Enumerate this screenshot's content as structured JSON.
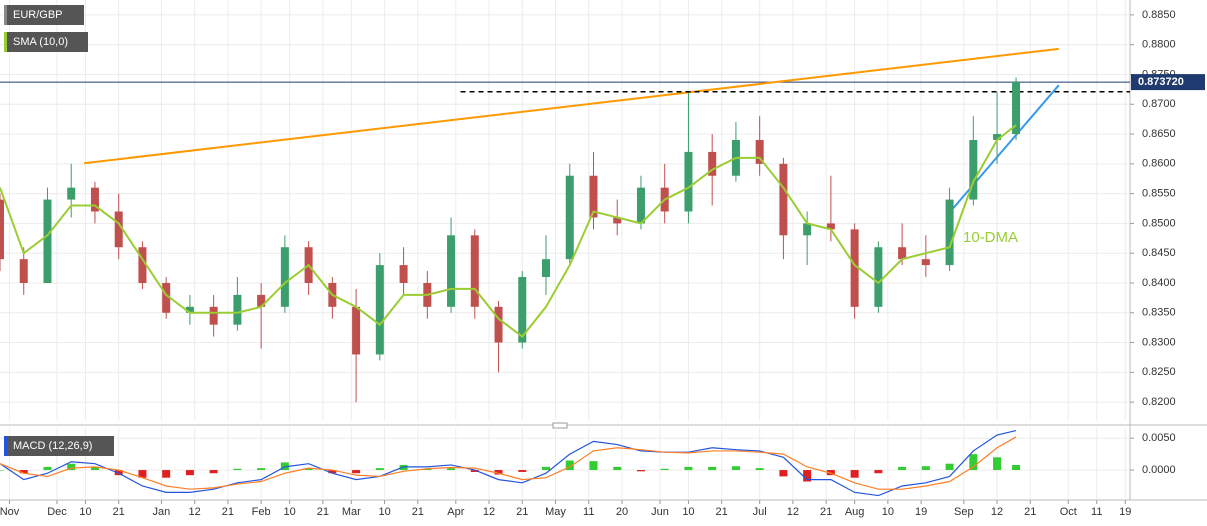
{
  "chart_data": {
    "type": "candlestick",
    "title": "EUR/GBP",
    "sma_label": "SMA (10,0)",
    "macd_label": "MACD (12,26,9)",
    "annotation": "10-DMA",
    "last_price": {
      "value": 0.87372,
      "label": "0.873720"
    },
    "colors": {
      "up": "#3b9e6c",
      "down": "#c0504d",
      "sma": "#9acd32",
      "trend": "#ff9900",
      "support": "#3399ee",
      "macd": "#2255dd",
      "signal": "#ff7f27",
      "hist_up": "#33cc33",
      "hist_down": "#e02020"
    },
    "grid": true,
    "xlim": [
      0,
      238
    ],
    "xticks": [
      {
        "value": 2,
        "label": "Nov"
      },
      {
        "value": 12,
        "label": "Dec"
      },
      {
        "value": 18,
        "label": "10"
      },
      {
        "value": 25,
        "label": "21"
      },
      {
        "value": 34,
        "label": "Jan"
      },
      {
        "value": 41,
        "label": "12"
      },
      {
        "value": 48,
        "label": "21"
      },
      {
        "value": 55,
        "label": "Feb"
      },
      {
        "value": 61,
        "label": "10"
      },
      {
        "value": 68,
        "label": "21"
      },
      {
        "value": 74,
        "label": "Mar"
      },
      {
        "value": 81,
        "label": "10"
      },
      {
        "value": 88,
        "label": "21"
      },
      {
        "value": 96,
        "label": "Apr"
      },
      {
        "value": 103,
        "label": "12"
      },
      {
        "value": 110,
        "label": "21"
      },
      {
        "value": 117,
        "label": "May"
      },
      {
        "value": 124,
        "label": "11"
      },
      {
        "value": 131,
        "label": "20"
      },
      {
        "value": 139,
        "label": "Jun"
      },
      {
        "value": 145,
        "label": "10"
      },
      {
        "value": 152,
        "label": "21"
      },
      {
        "value": 160,
        "label": "Jul"
      },
      {
        "value": 167,
        "label": "12"
      },
      {
        "value": 174,
        "label": "21"
      },
      {
        "value": 180,
        "label": "Aug"
      },
      {
        "value": 187,
        "label": "10"
      },
      {
        "value": 194,
        "label": "19"
      },
      {
        "value": 203,
        "label": "Sep"
      },
      {
        "value": 210,
        "label": "12"
      },
      {
        "value": 217,
        "label": "21"
      },
      {
        "value": 225,
        "label": "Oct"
      },
      {
        "value": 231,
        "label": "11"
      },
      {
        "value": 237,
        "label": "19"
      }
    ],
    "ylim": [
      0.817,
      0.8875
    ],
    "yticks": [
      {
        "value": 0.885,
        "label": "0.8850"
      },
      {
        "value": 0.88,
        "label": "0.8800"
      },
      {
        "value": 0.875,
        "label": "0.8750"
      },
      {
        "value": 0.87,
        "label": "0.8700"
      },
      {
        "value": 0.865,
        "label": "0.8650"
      },
      {
        "value": 0.86,
        "label": "0.8600"
      },
      {
        "value": 0.855,
        "label": "0.8550"
      },
      {
        "value": 0.85,
        "label": "0.8500"
      },
      {
        "value": 0.845,
        "label": "0.8450"
      },
      {
        "value": 0.84,
        "label": "0.8400"
      },
      {
        "value": 0.835,
        "label": "0.8350"
      },
      {
        "value": 0.83,
        "label": "0.8300"
      },
      {
        "value": 0.825,
        "label": "0.8250"
      },
      {
        "value": 0.82,
        "label": "0.8200"
      }
    ],
    "x": [
      0,
      5,
      10,
      15,
      20,
      25,
      30,
      35,
      40,
      45,
      50,
      55,
      60,
      65,
      70,
      75,
      80,
      85,
      90,
      95,
      100,
      105,
      110,
      115,
      120,
      125,
      130,
      135,
      140,
      145,
      150,
      155,
      160,
      165,
      170,
      175,
      180,
      185,
      190,
      195,
      200,
      205,
      210,
      214
    ],
    "open": [
      0.854,
      0.844,
      0.84,
      0.854,
      0.856,
      0.852,
      0.846,
      0.84,
      0.835,
      0.836,
      0.833,
      0.838,
      0.836,
      0.846,
      0.84,
      0.836,
      0.828,
      0.843,
      0.84,
      0.836,
      0.848,
      0.836,
      0.83,
      0.841,
      0.844,
      0.858,
      0.851,
      0.85,
      0.856,
      0.852,
      0.862,
      0.858,
      0.864,
      0.86,
      0.848,
      0.85,
      0.849,
      0.836,
      0.846,
      0.844,
      0.843,
      0.854,
      0.864,
      0.865
    ],
    "high": [
      0.855,
      0.846,
      0.856,
      0.86,
      0.857,
      0.855,
      0.847,
      0.841,
      0.838,
      0.838,
      0.841,
      0.84,
      0.848,
      0.847,
      0.841,
      0.839,
      0.845,
      0.846,
      0.842,
      0.851,
      0.849,
      0.837,
      0.842,
      0.848,
      0.86,
      0.862,
      0.854,
      0.858,
      0.86,
      0.872,
      0.865,
      0.867,
      0.868,
      0.861,
      0.852,
      0.858,
      0.85,
      0.847,
      0.85,
      0.848,
      0.856,
      0.868,
      0.872,
      0.8745
    ],
    "low": [
      0.842,
      0.838,
      0.84,
      0.851,
      0.85,
      0.844,
      0.839,
      0.834,
      0.833,
      0.831,
      0.832,
      0.829,
      0.835,
      0.838,
      0.834,
      0.82,
      0.827,
      0.838,
      0.834,
      0.835,
      0.834,
      0.825,
      0.829,
      0.838,
      0.843,
      0.849,
      0.848,
      0.849,
      0.85,
      0.85,
      0.853,
      0.857,
      0.858,
      0.844,
      0.843,
      0.847,
      0.834,
      0.835,
      0.843,
      0.841,
      0.842,
      0.853,
      0.86,
      0.864
    ],
    "close": [
      0.844,
      0.84,
      0.854,
      0.856,
      0.852,
      0.846,
      0.84,
      0.835,
      0.836,
      0.833,
      0.838,
      0.836,
      0.846,
      0.84,
      0.836,
      0.828,
      0.843,
      0.84,
      0.836,
      0.848,
      0.836,
      0.83,
      0.841,
      0.844,
      0.858,
      0.851,
      0.85,
      0.856,
      0.852,
      0.862,
      0.858,
      0.864,
      0.86,
      0.848,
      0.85,
      0.849,
      0.836,
      0.846,
      0.844,
      0.843,
      0.854,
      0.864,
      0.865,
      0.87372
    ],
    "sma": [
      0.856,
      0.845,
      0.848,
      0.853,
      0.853,
      0.85,
      0.844,
      0.838,
      0.835,
      0.835,
      0.835,
      0.836,
      0.84,
      0.843,
      0.838,
      0.836,
      0.833,
      0.838,
      0.838,
      0.839,
      0.839,
      0.834,
      0.831,
      0.836,
      0.843,
      0.852,
      0.851,
      0.85,
      0.854,
      0.856,
      0.859,
      0.861,
      0.861,
      0.856,
      0.85,
      0.849,
      0.843,
      0.84,
      0.844,
      0.845,
      0.846,
      0.857,
      0.864,
      0.8665
    ],
    "trendline": {
      "x": [
        17.7,
        223
      ],
      "y": [
        0.8601,
        0.8793
      ]
    },
    "resistance": {
      "x": [
        97,
        238
      ],
      "y": [
        0.8721,
        0.8721
      ]
    },
    "support": {
      "x": [
        200.6,
        223
      ],
      "y": [
        0.8524,
        0.8732
      ]
    },
    "macd_ylim": [
      -0.0047,
      0.0066
    ],
    "macd_yticks": [
      {
        "value": 0.005,
        "label": "0.0050"
      },
      {
        "value": 0,
        "label": "0.0000"
      }
    ],
    "hist": [
      0.0,
      -0.0005,
      0.0005,
      0.001,
      0.0005,
      -0.0008,
      -0.0012,
      -0.0012,
      -0.0008,
      -0.0005,
      0.0002,
      0.0003,
      0.0012,
      0.0003,
      -0.0005,
      -0.0005,
      0.0003,
      0.0008,
      0.0002,
      0.0003,
      -0.0003,
      -0.0007,
      -0.0003,
      0.0005,
      0.0015,
      0.0014,
      0.0005,
      -0.0002,
      0.0002,
      0.0005,
      0.0005,
      0.0006,
      0.0003,
      -0.001,
      -0.0018,
      -0.0008,
      -0.0012,
      -0.0005,
      0.0005,
      0.0006,
      0.001,
      0.0025,
      0.002,
      0.0008
    ],
    "macd": [
      0.001,
      -0.0015,
      -0.0005,
      0.0013,
      0.001,
      -0.0005,
      -0.0025,
      -0.0035,
      -0.0035,
      -0.003,
      -0.002,
      -0.0015,
      0.0005,
      0.001,
      -0.0005,
      -0.0015,
      -0.001,
      0.0005,
      0.0005,
      0.0008,
      0.0,
      -0.0015,
      -0.002,
      -0.0005,
      0.0025,
      0.0045,
      0.004,
      0.003,
      0.0028,
      0.0028,
      0.0035,
      0.0032,
      0.003,
      0.002,
      -0.0015,
      -0.0015,
      -0.0035,
      -0.004,
      -0.0025,
      -0.002,
      -0.001,
      0.003,
      0.0055,
      0.0062
    ],
    "signal": [
      0.001,
      -0.0005,
      -0.001,
      0.0003,
      0.0005,
      0.0,
      -0.0012,
      -0.0025,
      -0.003,
      -0.0028,
      -0.0022,
      -0.0018,
      -0.0005,
      0.0003,
      0.0,
      -0.0008,
      -0.001,
      -0.0002,
      0.0002,
      0.0004,
      0.0003,
      -0.0005,
      -0.0015,
      -0.0012,
      0.0005,
      0.003,
      0.0035,
      0.0032,
      0.0028,
      0.0027,
      0.003,
      0.003,
      0.0028,
      0.0025,
      0.0005,
      -0.0005,
      -0.002,
      -0.003,
      -0.003,
      -0.0025,
      -0.0018,
      0.0005,
      0.0035,
      0.0052
    ]
  }
}
